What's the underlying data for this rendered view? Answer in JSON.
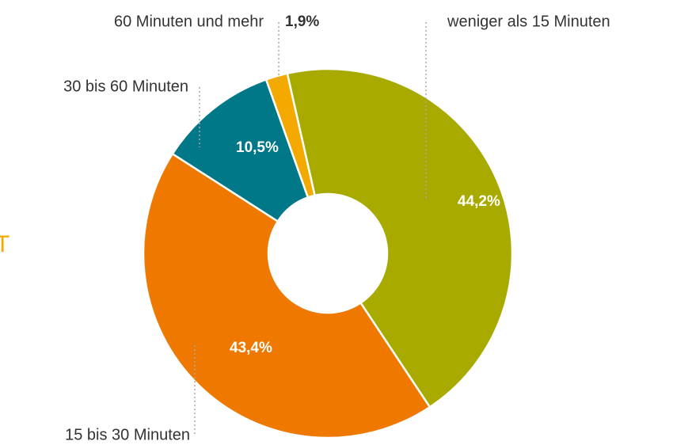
{
  "chart_data": {
    "type": "donut",
    "categories": [
      "weniger als 15 Minuten",
      "15 bis 30 Minuten",
      "30 bis 60 Minuten",
      "60 Minuten und mehr"
    ],
    "values": [
      44.2,
      43.4,
      10.5,
      1.9
    ],
    "value_labels": [
      "44,2%",
      "43,4%",
      "10,5%",
      "1,9%"
    ],
    "colors": [
      "#a9aa00",
      "#ee7800",
      "#007888",
      "#f4a900"
    ],
    "clipped_text": "T"
  }
}
